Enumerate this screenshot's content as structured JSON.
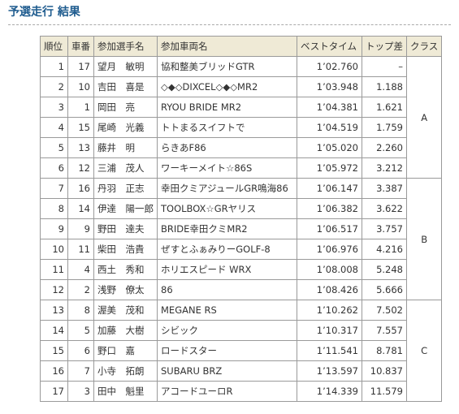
{
  "header": {
    "title": "予選走行 結果"
  },
  "table": {
    "columns": [
      "順位",
      "車番",
      "参加選手名",
      "参加車両名",
      "ベストタイム",
      "トップ差",
      "クラス"
    ],
    "groups": [
      {
        "class": "A",
        "rows": [
          [
            "1",
            "17",
            "望月　敏明",
            "協和整美ブリッドGTR",
            "1’02.760",
            "–"
          ],
          [
            "2",
            "10",
            "吉田　喜是",
            "◇◆◇DIXCEL◇◆◇MR2",
            "1’03.948",
            "1.188"
          ],
          [
            "3",
            "1",
            "岡田　亮",
            "RYOU BRIDE MR2",
            "1’04.381",
            "1.621"
          ],
          [
            "4",
            "15",
            "尾崎　光義",
            "トトまるスイフトで",
            "1’04.519",
            "1.759"
          ],
          [
            "5",
            "13",
            "藤井　明",
            "らきあF86",
            "1’05.020",
            "2.260"
          ],
          [
            "6",
            "12",
            "三浦　茂人",
            "ワーキーメイト☆86S",
            "1’05.972",
            "3.212"
          ]
        ]
      },
      {
        "class": "B",
        "rows": [
          [
            "7",
            "16",
            "丹羽　正志",
            "幸田クミアジュールGR鳴海86",
            "1’06.147",
            "3.387"
          ],
          [
            "8",
            "14",
            "伊達　陽一郎",
            "TOOLBOX☆GRヤリス",
            "1’06.382",
            "3.622"
          ],
          [
            "9",
            "9",
            "野田　達夫",
            "BRIDE幸田クミMR2",
            "1’06.517",
            "3.757"
          ],
          [
            "10",
            "11",
            "柴田　浩貴",
            "ぜすとふぁみりーGOLF-8",
            "1’06.976",
            "4.216"
          ],
          [
            "11",
            "4",
            "西土　秀和",
            "ホリエスピード WRX",
            "1’08.008",
            "5.248"
          ],
          [
            "12",
            "2",
            "浅野　僚太",
            "86",
            "1’08.426",
            "5.666"
          ]
        ]
      },
      {
        "class": "C",
        "rows": [
          [
            "13",
            "8",
            "渥美　茂和",
            "MEGANE RS",
            "1’10.262",
            "7.502"
          ],
          [
            "14",
            "5",
            "加藤　大樹",
            "シビック",
            "1’10.317",
            "7.557"
          ],
          [
            "15",
            "6",
            "野口　嘉",
            "ロードスター",
            "1’11.541",
            "8.781"
          ],
          [
            "16",
            "7",
            "小寺　拓朗",
            "SUBARU BRZ",
            "1’13.597",
            "10.837"
          ],
          [
            "17",
            "3",
            "田中　魁里",
            "アコードユーロR",
            "1’14.339",
            "11.579"
          ]
        ]
      }
    ]
  }
}
